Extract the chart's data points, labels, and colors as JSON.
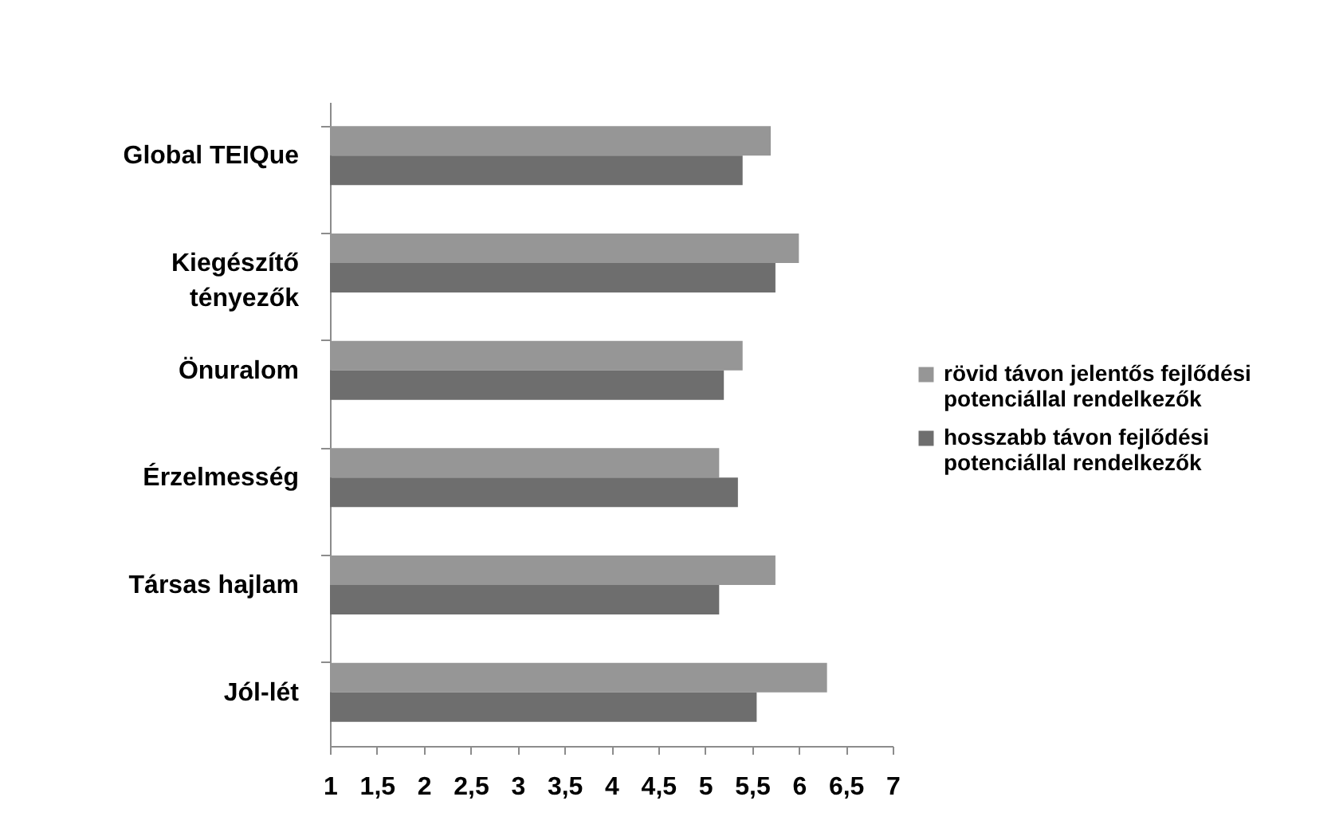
{
  "chart_data": {
    "type": "bar",
    "orientation": "horizontal",
    "categories": [
      "Global TEIQue",
      "Kiegészítő tényezők",
      "Önuralom",
      "Érzelmesség",
      "Társas hajlam",
      "Jól-lét"
    ],
    "series": [
      {
        "name": "rövid távon jelentős fejlődési potenciállal rendelkezők",
        "color": "#969696",
        "values": [
          5.7,
          6.0,
          5.4,
          5.15,
          5.75,
          6.3
        ]
      },
      {
        "name": "hosszabb távon fejlődési potenciállal rendelkezők",
        "color": "#6e6e6e",
        "values": [
          5.4,
          5.75,
          5.2,
          5.35,
          5.15,
          5.55
        ]
      }
    ],
    "xlim": [
      1,
      7
    ],
    "xticks": [
      1,
      {
        "value": 1.5,
        "label": "1,5"
      },
      2,
      {
        "value": 2.5,
        "label": "2,5"
      },
      3,
      {
        "value": 3.5,
        "label": "3,5"
      },
      4,
      {
        "value": 4.5,
        "label": "4,5"
      },
      5,
      {
        "value": 5.5,
        "label": "5,5"
      },
      6,
      {
        "value": 6.5,
        "label": "6,5"
      },
      7
    ],
    "grid": false,
    "legend": "right"
  }
}
